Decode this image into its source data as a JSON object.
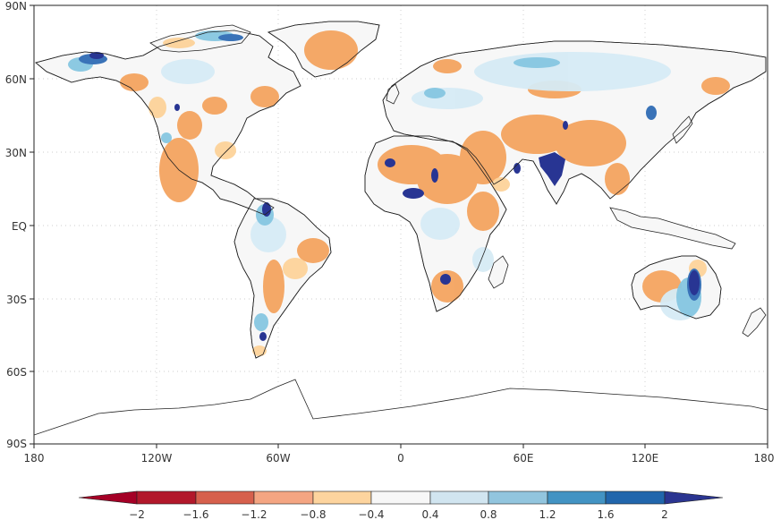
{
  "map": {
    "x_ticks": [
      "180",
      "120W",
      "60W",
      "0",
      "60E",
      "120E",
      "180"
    ],
    "y_ticks": [
      "90N",
      "60N",
      "30N",
      "EQ",
      "30S",
      "60S",
      "90S"
    ]
  },
  "colorbar": {
    "labels": [
      "−2",
      "−1.6",
      "−1.2",
      "−0.8",
      "−0.4",
      "0.4",
      "0.8",
      "1.2",
      "1.6",
      "2"
    ],
    "colors": [
      "#b2182b",
      "#d6604d",
      "#f4a582",
      "#fdd49e",
      "#f7f7f7",
      "#d1e5f0",
      "#92c5de",
      "#4393c3",
      "#2166ac"
    ],
    "low_extend_color": "#a50026",
    "high_extend_color": "#2b3591"
  },
  "palette": {
    "dry_strong": "#f4a460",
    "dry_light": "#fdd39a",
    "neutral": "#f7f7f7",
    "wet_light": "#d6ebf5",
    "wet_mid": "#86c6e0",
    "wet_strong": "#3a73b8",
    "wet_extreme": "#283593"
  }
}
